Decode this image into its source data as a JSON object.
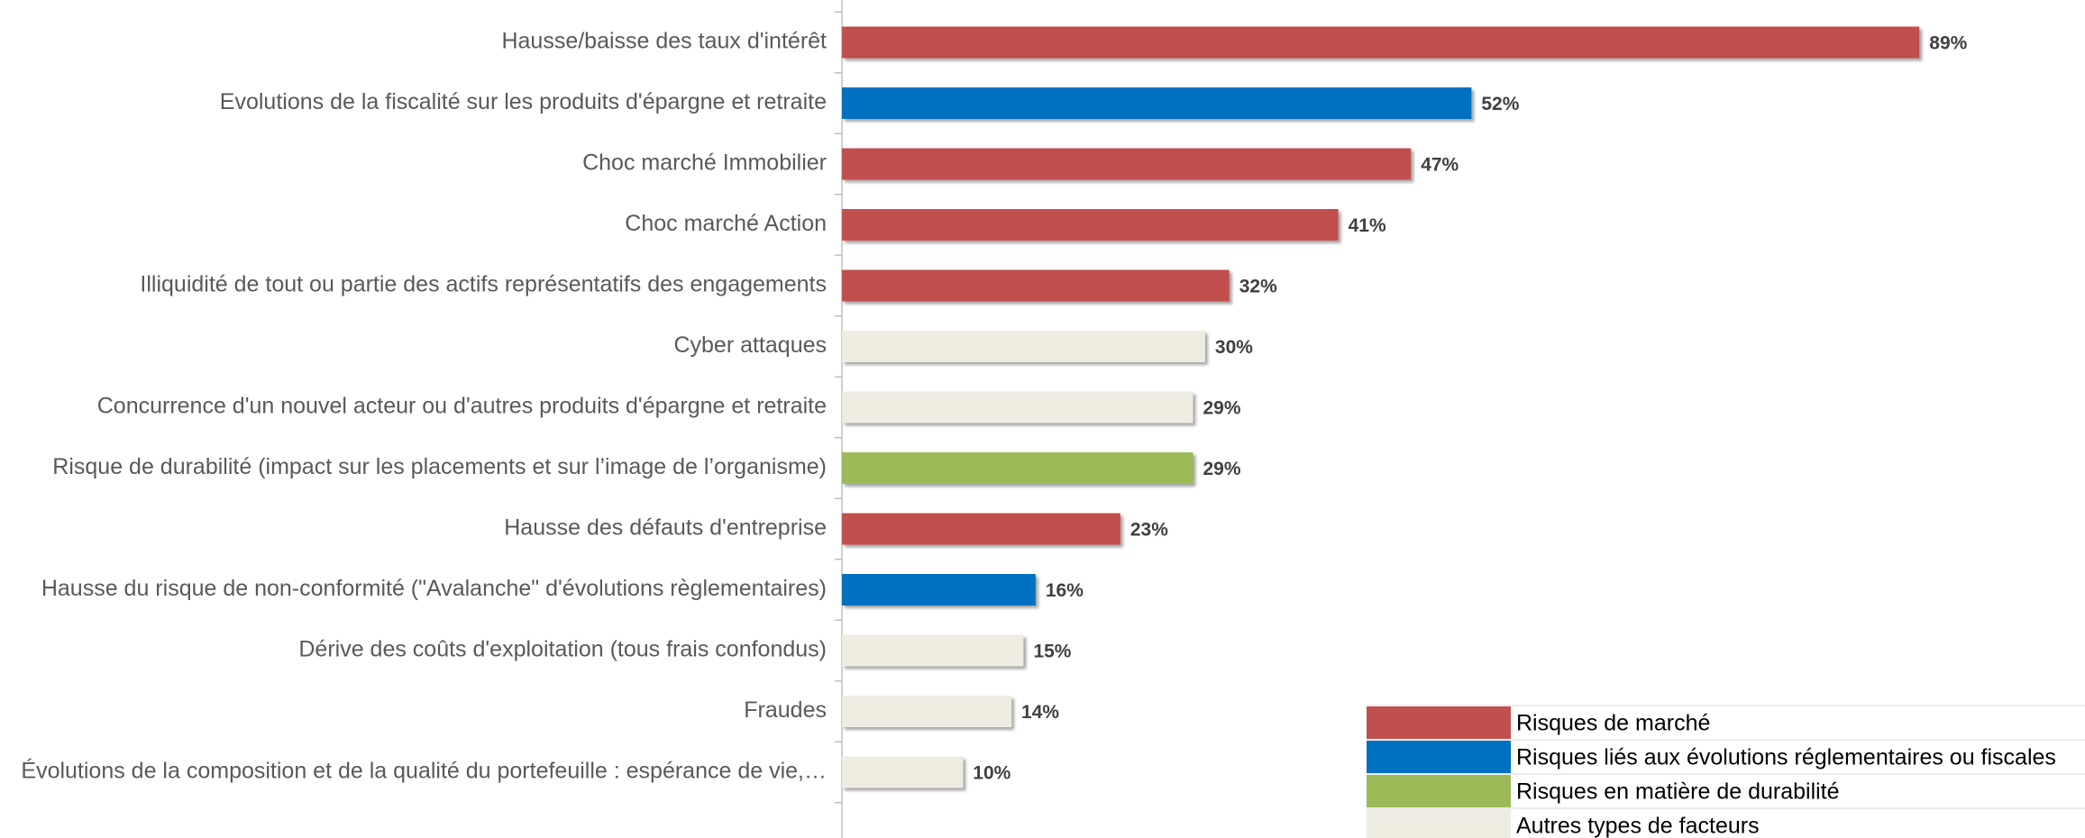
{
  "chart_data": {
    "type": "bar",
    "orientation": "horizontal",
    "categories": [
      "Hausse/baisse des taux d'intérêt",
      "Evolutions de la fiscalité sur les produits d'épargne et retraite",
      "Choc marché Immobilier",
      "Choc marché Action",
      "Illiquidité de tout ou partie des actifs représentatifs des engagements",
      "Cyber attaques",
      "Concurrence d'un nouvel acteur ou d'autres produits d'épargne et retraite",
      "Risque de durabilité (impact sur les placements et sur l’image de l’organisme)",
      "Hausse des défauts d'entreprise",
      "Hausse du risque de non-conformité (\"Avalanche\" d'évolutions règlementaires)",
      "Dérive des coûts d'exploitation (tous frais confondus)",
      "Fraudes",
      "Évolutions de la composition et de la qualité du portefeuille : espérance  de vie,…"
    ],
    "series": [
      {
        "name": "Risques de marché",
        "color": "#c0504d",
        "values": [
          89,
          null,
          47,
          41,
          32,
          null,
          null,
          null,
          23,
          null,
          null,
          null,
          null
        ],
        "value_labels": [
          "89%",
          null,
          "47%",
          "41%",
          "32%",
          null,
          null,
          null,
          "23%",
          null,
          null,
          null,
          null
        ]
      },
      {
        "name": "Risques liés aux évolutions réglementaires ou fiscales",
        "color": "#0070c0",
        "values": [
          null,
          52,
          null,
          null,
          null,
          null,
          null,
          null,
          null,
          16,
          null,
          null,
          null
        ],
        "value_labels": [
          null,
          "52%",
          null,
          null,
          null,
          null,
          null,
          null,
          null,
          "16%",
          null,
          null,
          null
        ]
      },
      {
        "name": "Risques en matière de durabilité",
        "color": "#9bbb59",
        "values": [
          null,
          null,
          null,
          null,
          null,
          null,
          null,
          29,
          null,
          null,
          null,
          null,
          null
        ],
        "value_labels": [
          null,
          null,
          null,
          null,
          null,
          null,
          null,
          "29%",
          null,
          null,
          null,
          null,
          null
        ]
      },
      {
        "name": "Autres types de facteurs",
        "color": "#eeece1",
        "values": [
          null,
          null,
          null,
          null,
          null,
          30,
          29,
          null,
          null,
          null,
          15,
          14,
          10
        ],
        "value_labels": [
          null,
          null,
          null,
          null,
          null,
          "30%",
          "29%",
          null,
          null,
          null,
          "15%",
          "14%",
          "10%"
        ]
      }
    ],
    "legend": "bottom-right"
  }
}
